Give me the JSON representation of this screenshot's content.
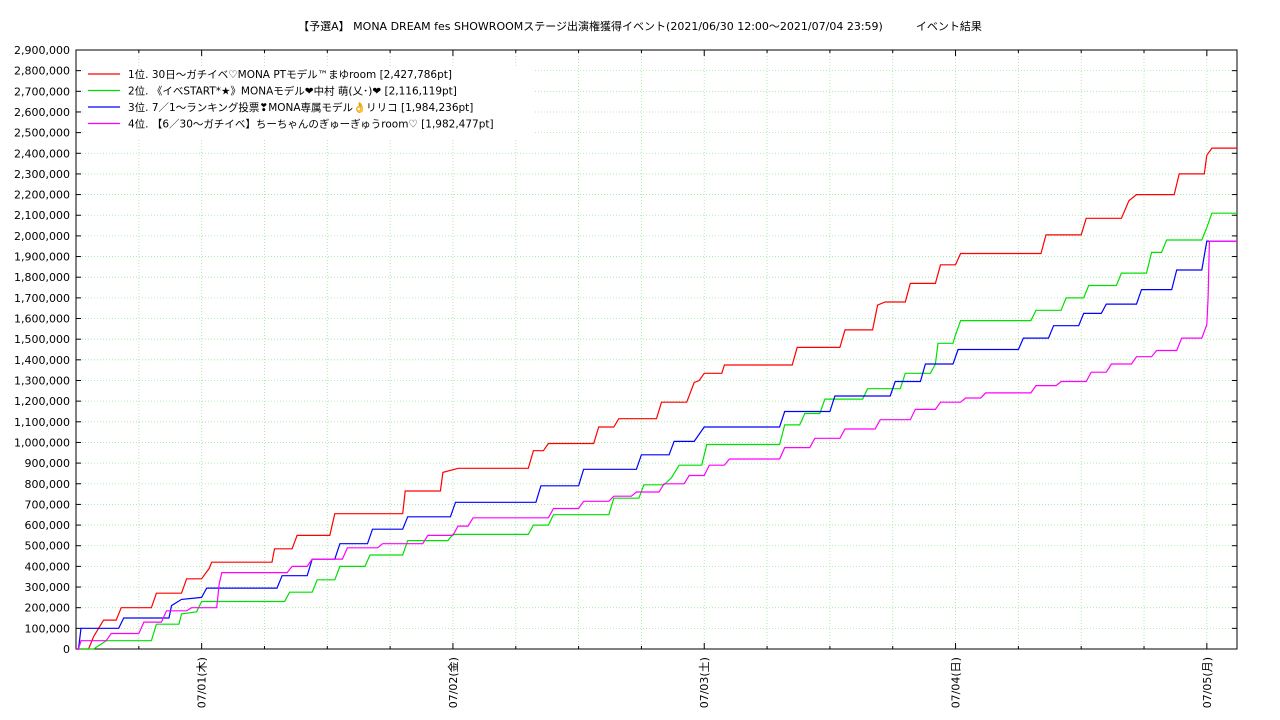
{
  "chart_data": {
    "type": "line",
    "title": "【予選A】 MONA DREAM fes SHOWROOMステージ出演権獲得イベント(2021/06/30 12:00～2021/07/04 23:59)　　　イベント結果",
    "xlabel": "",
    "ylabel": "",
    "x_ticks": [
      "07/01(木)",
      "07/02(金)",
      "07/03(土)",
      "07/04(日)",
      "07/05(月)"
    ],
    "y_ticks": [
      "0",
      "100,000",
      "200,000",
      "300,000",
      "400,000",
      "500,000",
      "600,000",
      "700,000",
      "800,000",
      "900,000",
      "1,000,000",
      "1,100,000",
      "1,200,000",
      "1,300,000",
      "1,400,000",
      "1,500,000",
      "1,600,000",
      "1,700,000",
      "1,800,000",
      "1,900,000",
      "2,000,000",
      "2,100,000",
      "2,200,000",
      "2,300,000",
      "2,400,000",
      "2,500,000",
      "2,600,000",
      "2,700,000",
      "2,800,000",
      "2,900,000"
    ],
    "xlim_days": [
      -0.5,
      4.12
    ],
    "ylim": [
      0,
      2900000
    ],
    "grid": true,
    "legend_position": "top-left",
    "series": [
      {
        "name": "1位. 30日～ガチイベ♡MONA PTモデル™まゆroom [2,427,786pt]",
        "color": "#ff0000",
        "points": [
          [
            -0.5,
            0
          ],
          [
            -0.45,
            0
          ],
          [
            -0.43,
            60000
          ],
          [
            -0.39,
            140000
          ],
          [
            -0.34,
            140000
          ],
          [
            -0.32,
            200000
          ],
          [
            -0.2,
            200000
          ],
          [
            -0.18,
            270000
          ],
          [
            -0.08,
            270000
          ],
          [
            -0.06,
            340000
          ],
          [
            0.0,
            340000
          ],
          [
            0.03,
            390000
          ],
          [
            0.04,
            420000
          ],
          [
            0.28,
            420000
          ],
          [
            0.29,
            485000
          ],
          [
            0.36,
            485000
          ],
          [
            0.38,
            550000
          ],
          [
            0.51,
            550000
          ],
          [
            0.53,
            655000
          ],
          [
            0.8,
            655000
          ],
          [
            0.81,
            765000
          ],
          [
            0.95,
            765000
          ],
          [
            0.96,
            855000
          ],
          [
            1.02,
            875000
          ],
          [
            1.3,
            875000
          ],
          [
            1.32,
            960000
          ],
          [
            1.36,
            960000
          ],
          [
            1.38,
            995000
          ],
          [
            1.56,
            995000
          ],
          [
            1.58,
            1075000
          ],
          [
            1.64,
            1075000
          ],
          [
            1.66,
            1115000
          ],
          [
            1.81,
            1115000
          ],
          [
            1.83,
            1195000
          ],
          [
            1.93,
            1195000
          ],
          [
            1.96,
            1290000
          ],
          [
            1.98,
            1300000
          ],
          [
            2.0,
            1335000
          ],
          [
            2.07,
            1335000
          ],
          [
            2.08,
            1375000
          ],
          [
            2.35,
            1375000
          ],
          [
            2.37,
            1460000
          ],
          [
            2.54,
            1460000
          ],
          [
            2.56,
            1545000
          ],
          [
            2.67,
            1545000
          ],
          [
            2.69,
            1665000
          ],
          [
            2.72,
            1680000
          ],
          [
            2.8,
            1680000
          ],
          [
            2.82,
            1770000
          ],
          [
            2.92,
            1770000
          ],
          [
            2.94,
            1860000
          ],
          [
            3.0,
            1860000
          ],
          [
            3.02,
            1915000
          ],
          [
            3.34,
            1915000
          ],
          [
            3.36,
            2005000
          ],
          [
            3.5,
            2005000
          ],
          [
            3.52,
            2085000
          ],
          [
            3.66,
            2085000
          ],
          [
            3.69,
            2170000
          ],
          [
            3.72,
            2200000
          ],
          [
            3.87,
            2200000
          ],
          [
            3.89,
            2300000
          ],
          [
            3.99,
            2300000
          ],
          [
            4.0,
            2390000
          ],
          [
            4.02,
            2425000
          ],
          [
            4.12,
            2425000
          ]
        ]
      },
      {
        "name": "2位. 《イベSTART*★》MONAモデル❤中村 萌(乂･)❤ [2,116,119pt]",
        "color": "#00e000",
        "points": [
          [
            -0.5,
            0
          ],
          [
            -0.43,
            0
          ],
          [
            -0.38,
            40000
          ],
          [
            -0.2,
            40000
          ],
          [
            -0.18,
            120000
          ],
          [
            -0.09,
            120000
          ],
          [
            -0.08,
            170000
          ],
          [
            -0.02,
            180000
          ],
          [
            0.0,
            230000
          ],
          [
            0.33,
            230000
          ],
          [
            0.35,
            275000
          ],
          [
            0.44,
            275000
          ],
          [
            0.46,
            335000
          ],
          [
            0.53,
            335000
          ],
          [
            0.55,
            400000
          ],
          [
            0.65,
            400000
          ],
          [
            0.67,
            455000
          ],
          [
            0.8,
            455000
          ],
          [
            0.82,
            525000
          ],
          [
            0.98,
            525000
          ],
          [
            1.0,
            555000
          ],
          [
            1.3,
            555000
          ],
          [
            1.32,
            600000
          ],
          [
            1.38,
            600000
          ],
          [
            1.4,
            650000
          ],
          [
            1.62,
            650000
          ],
          [
            1.64,
            730000
          ],
          [
            1.74,
            730000
          ],
          [
            1.76,
            795000
          ],
          [
            1.84,
            795000
          ],
          [
            1.87,
            830000
          ],
          [
            1.9,
            890000
          ],
          [
            1.99,
            890000
          ],
          [
            2.01,
            990000
          ],
          [
            2.3,
            990000
          ],
          [
            2.32,
            1085000
          ],
          [
            2.38,
            1085000
          ],
          [
            2.4,
            1140000
          ],
          [
            2.46,
            1140000
          ],
          [
            2.48,
            1210000
          ],
          [
            2.63,
            1210000
          ],
          [
            2.65,
            1260000
          ],
          [
            2.78,
            1260000
          ],
          [
            2.8,
            1335000
          ],
          [
            2.9,
            1335000
          ],
          [
            2.92,
            1380000
          ],
          [
            2.93,
            1480000
          ],
          [
            2.99,
            1480000
          ],
          [
            3.0,
            1520000
          ],
          [
            3.02,
            1590000
          ],
          [
            3.3,
            1590000
          ],
          [
            3.32,
            1640000
          ],
          [
            3.42,
            1640000
          ],
          [
            3.44,
            1700000
          ],
          [
            3.51,
            1700000
          ],
          [
            3.53,
            1760000
          ],
          [
            3.64,
            1760000
          ],
          [
            3.66,
            1820000
          ],
          [
            3.76,
            1820000
          ],
          [
            3.78,
            1920000
          ],
          [
            3.82,
            1920000
          ],
          [
            3.84,
            1980000
          ],
          [
            3.98,
            1980000
          ],
          [
            4.0,
            2040000
          ],
          [
            4.02,
            2110000
          ],
          [
            4.12,
            2110000
          ]
        ]
      },
      {
        "name": "3位. 7／1～ランキング投票❣MONA専属モデル👌リリコ [1,984,236pt]",
        "color": "#0000ff",
        "points": [
          [
            -0.5,
            0
          ],
          [
            -0.49,
            0
          ],
          [
            -0.48,
            100000
          ],
          [
            -0.33,
            100000
          ],
          [
            -0.31,
            150000
          ],
          [
            -0.13,
            150000
          ],
          [
            -0.12,
            210000
          ],
          [
            -0.08,
            240000
          ],
          [
            0.0,
            250000
          ],
          [
            0.02,
            295000
          ],
          [
            0.3,
            295000
          ],
          [
            0.32,
            355000
          ],
          [
            0.42,
            355000
          ],
          [
            0.44,
            435000
          ],
          [
            0.53,
            435000
          ],
          [
            0.55,
            510000
          ],
          [
            0.66,
            510000
          ],
          [
            0.68,
            580000
          ],
          [
            0.8,
            580000
          ],
          [
            0.82,
            640000
          ],
          [
            0.99,
            640000
          ],
          [
            1.01,
            710000
          ],
          [
            1.33,
            710000
          ],
          [
            1.35,
            790000
          ],
          [
            1.5,
            790000
          ],
          [
            1.52,
            870000
          ],
          [
            1.73,
            870000
          ],
          [
            1.75,
            940000
          ],
          [
            1.86,
            940000
          ],
          [
            1.88,
            1005000
          ],
          [
            1.96,
            1005000
          ],
          [
            2.0,
            1075000
          ],
          [
            2.3,
            1075000
          ],
          [
            2.32,
            1150000
          ],
          [
            2.5,
            1150000
          ],
          [
            2.52,
            1225000
          ],
          [
            2.74,
            1225000
          ],
          [
            2.76,
            1295000
          ],
          [
            2.86,
            1295000
          ],
          [
            2.88,
            1380000
          ],
          [
            2.99,
            1380000
          ],
          [
            3.01,
            1450000
          ],
          [
            3.25,
            1450000
          ],
          [
            3.27,
            1505000
          ],
          [
            3.37,
            1505000
          ],
          [
            3.39,
            1565000
          ],
          [
            3.49,
            1565000
          ],
          [
            3.51,
            1625000
          ],
          [
            3.58,
            1625000
          ],
          [
            3.6,
            1670000
          ],
          [
            3.72,
            1670000
          ],
          [
            3.74,
            1740000
          ],
          [
            3.86,
            1740000
          ],
          [
            3.88,
            1835000
          ],
          [
            3.98,
            1835000
          ],
          [
            4.0,
            1975000
          ],
          [
            4.12,
            1975000
          ]
        ]
      },
      {
        "name": "4位. 【6／30～ガチイベ】ちーちゃんのぎゅーぎゅうroom♡ [1,982,477pt]",
        "color": "#ff00ff",
        "points": [
          [
            -0.5,
            0
          ],
          [
            -0.49,
            0
          ],
          [
            -0.48,
            40000
          ],
          [
            -0.38,
            40000
          ],
          [
            -0.36,
            75000
          ],
          [
            -0.25,
            75000
          ],
          [
            -0.23,
            130000
          ],
          [
            -0.16,
            130000
          ],
          [
            -0.14,
            185000
          ],
          [
            -0.06,
            185000
          ],
          [
            -0.04,
            200000
          ],
          [
            0.06,
            200000
          ],
          [
            0.07,
            315000
          ],
          [
            0.08,
            370000
          ],
          [
            0.34,
            370000
          ],
          [
            0.36,
            400000
          ],
          [
            0.42,
            400000
          ],
          [
            0.44,
            435000
          ],
          [
            0.56,
            435000
          ],
          [
            0.58,
            490000
          ],
          [
            0.7,
            490000
          ],
          [
            0.72,
            510000
          ],
          [
            0.88,
            510000
          ],
          [
            0.9,
            550000
          ],
          [
            1.0,
            550000
          ],
          [
            1.02,
            595000
          ],
          [
            1.06,
            595000
          ],
          [
            1.08,
            635000
          ],
          [
            1.38,
            635000
          ],
          [
            1.4,
            680000
          ],
          [
            1.5,
            680000
          ],
          [
            1.52,
            715000
          ],
          [
            1.62,
            715000
          ],
          [
            1.64,
            740000
          ],
          [
            1.71,
            740000
          ],
          [
            1.73,
            760000
          ],
          [
            1.82,
            760000
          ],
          [
            1.84,
            800000
          ],
          [
            1.92,
            800000
          ],
          [
            1.94,
            840000
          ],
          [
            2.0,
            840000
          ],
          [
            2.02,
            890000
          ],
          [
            2.08,
            890000
          ],
          [
            2.1,
            920000
          ],
          [
            2.3,
            920000
          ],
          [
            2.32,
            975000
          ],
          [
            2.42,
            975000
          ],
          [
            2.44,
            1020000
          ],
          [
            2.54,
            1020000
          ],
          [
            2.56,
            1065000
          ],
          [
            2.68,
            1065000
          ],
          [
            2.7,
            1110000
          ],
          [
            2.82,
            1110000
          ],
          [
            2.84,
            1160000
          ],
          [
            2.92,
            1160000
          ],
          [
            2.94,
            1195000
          ],
          [
            3.02,
            1195000
          ],
          [
            3.04,
            1215000
          ],
          [
            3.1,
            1215000
          ],
          [
            3.12,
            1240000
          ],
          [
            3.3,
            1240000
          ],
          [
            3.32,
            1275000
          ],
          [
            3.4,
            1275000
          ],
          [
            3.42,
            1295000
          ],
          [
            3.52,
            1295000
          ],
          [
            3.54,
            1340000
          ],
          [
            3.6,
            1340000
          ],
          [
            3.62,
            1380000
          ],
          [
            3.7,
            1380000
          ],
          [
            3.72,
            1415000
          ],
          [
            3.78,
            1415000
          ],
          [
            3.8,
            1445000
          ],
          [
            3.88,
            1445000
          ],
          [
            3.9,
            1505000
          ],
          [
            3.98,
            1505000
          ],
          [
            4.0,
            1570000
          ],
          [
            4.005,
            1700000
          ],
          [
            4.01,
            1975000
          ],
          [
            4.12,
            1975000
          ]
        ]
      }
    ]
  }
}
